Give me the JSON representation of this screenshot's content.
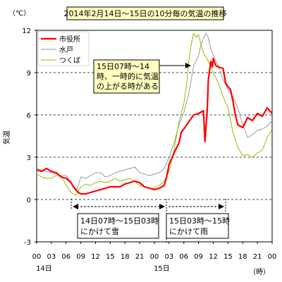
{
  "chart_data": {
    "type": "line",
    "title": "2014年2月14日～15日の10分毎の気温の推移",
    "ylabel": "気温",
    "yunit": "（℃）",
    "xunit": "（時）",
    "ylim": [
      -3,
      12
    ],
    "yticks": [
      "-3",
      "0",
      "3",
      "6",
      "9",
      "12"
    ],
    "ytick_values": [
      -3,
      0,
      3,
      6,
      9,
      12
    ],
    "xlim": [
      0,
      48
    ],
    "xticks": [
      "00",
      "03",
      "06",
      "09",
      "12",
      "15",
      "18",
      "21",
      "00",
      "03",
      "06",
      "09",
      "12",
      "15",
      "18",
      "21",
      "00"
    ],
    "xtick_values": [
      0,
      3,
      6,
      9,
      12,
      15,
      18,
      21,
      24,
      27,
      30,
      33,
      36,
      39,
      42,
      45,
      48
    ],
    "day_labels": [
      {
        "text": "14日",
        "x": 1.5
      },
      {
        "text": "15日",
        "x": 25.5
      }
    ],
    "grid": true,
    "legend_position": "top-left",
    "series": [
      {
        "name": "市役所",
        "color": "#ff0000",
        "points": [
          [
            0,
            2.1
          ],
          [
            1,
            2.0
          ],
          [
            2,
            2.2
          ],
          [
            3,
            2.0
          ],
          [
            4,
            1.9
          ],
          [
            5,
            1.6
          ],
          [
            6,
            1.5
          ],
          [
            7,
            1.2
          ],
          [
            7.5,
            0.9
          ],
          [
            8,
            0.7
          ],
          [
            8.5,
            0.5
          ],
          [
            9,
            0.4
          ],
          [
            10,
            0.4
          ],
          [
            11,
            0.5
          ],
          [
            12,
            0.6
          ],
          [
            13,
            0.7
          ],
          [
            14,
            0.8
          ],
          [
            15,
            0.9
          ],
          [
            16,
            0.9
          ],
          [
            17,
            0.9
          ],
          [
            18,
            1.1
          ],
          [
            19,
            1.2
          ],
          [
            20,
            1.3
          ],
          [
            21,
            1.2
          ],
          [
            22,
            0.9
          ],
          [
            23,
            0.8
          ],
          [
            24,
            0.7
          ],
          [
            25,
            0.8
          ],
          [
            26,
            1.0
          ],
          [
            26.5,
            1.6
          ],
          [
            27,
            2.5
          ],
          [
            28,
            3.3
          ],
          [
            29,
            4.0
          ],
          [
            29.5,
            4.8
          ],
          [
            30,
            5.0
          ],
          [
            31,
            5.5
          ],
          [
            32,
            6.0
          ],
          [
            33,
            6.1
          ],
          [
            34,
            6.3
          ],
          [
            34.3,
            4.1
          ],
          [
            34.8,
            6.5
          ],
          [
            35,
            8.5
          ],
          [
            35.5,
            9.8
          ],
          [
            35.8,
            9.4
          ],
          [
            36,
            10.0
          ],
          [
            36.5,
            9.5
          ],
          [
            37,
            9.4
          ],
          [
            38,
            9.3
          ],
          [
            38.5,
            8.3
          ],
          [
            39,
            8.0
          ],
          [
            39.5,
            7.8
          ],
          [
            40,
            7.0
          ],
          [
            40.5,
            6.0
          ],
          [
            41,
            5.3
          ],
          [
            42,
            5.1
          ],
          [
            43,
            5.8
          ],
          [
            44,
            5.6
          ],
          [
            45,
            6.1
          ],
          [
            46,
            5.9
          ],
          [
            47,
            6.5
          ],
          [
            48,
            6.1
          ]
        ]
      },
      {
        "name": "水戸",
        "color": "#999999",
        "points": [
          [
            0,
            2.2
          ],
          [
            1,
            2.1
          ],
          [
            2,
            2.0
          ],
          [
            3,
            1.9
          ],
          [
            4,
            1.8
          ],
          [
            5,
            1.7
          ],
          [
            6,
            1.7
          ],
          [
            7,
            1.2
          ],
          [
            8,
            0.6
          ],
          [
            8.5,
            1.0
          ],
          [
            9,
            1.6
          ],
          [
            10,
            1.5
          ],
          [
            11,
            1.7
          ],
          [
            12,
            1.9
          ],
          [
            13,
            1.9
          ],
          [
            14,
            1.6
          ],
          [
            15,
            1.7
          ],
          [
            16,
            1.9
          ],
          [
            17,
            2.0
          ],
          [
            18,
            2.1
          ],
          [
            19,
            2.2
          ],
          [
            20,
            2.3
          ],
          [
            21,
            1.9
          ],
          [
            22,
            1.8
          ],
          [
            23,
            1.7
          ],
          [
            24,
            1.8
          ],
          [
            25,
            1.9
          ],
          [
            26,
            2.2
          ],
          [
            27,
            3.0
          ],
          [
            28,
            4.0
          ],
          [
            29,
            5.3
          ],
          [
            30,
            6.2
          ],
          [
            31,
            7.5
          ],
          [
            32,
            9.5
          ],
          [
            33,
            10.2
          ],
          [
            33.5,
            11.0
          ],
          [
            34,
            11.4
          ],
          [
            34.5,
            11.8
          ],
          [
            35,
            11.5
          ],
          [
            35.5,
            10.7
          ],
          [
            36,
            10.2
          ],
          [
            37,
            9.5
          ],
          [
            38,
            8.5
          ],
          [
            39,
            7.8
          ],
          [
            40,
            7.3
          ],
          [
            41,
            6.5
          ],
          [
            42,
            5.3
          ],
          [
            43,
            4.4
          ],
          [
            44,
            4.6
          ],
          [
            45,
            4.9
          ],
          [
            46,
            5.0
          ],
          [
            47,
            5.2
          ],
          [
            48,
            5.6
          ]
        ]
      },
      {
        "name": "つくば",
        "color": "#99bb00",
        "points": [
          [
            0,
            1.8
          ],
          [
            1,
            1.6
          ],
          [
            2,
            1.5
          ],
          [
            3,
            1.5
          ],
          [
            4,
            1.7
          ],
          [
            5,
            1.7
          ],
          [
            6,
            1.0
          ],
          [
            7,
            0.5
          ],
          [
            8,
            0.3
          ],
          [
            9,
            0.9
          ],
          [
            10,
            1.1
          ],
          [
            11,
            1.0
          ],
          [
            12,
            1.2
          ],
          [
            13,
            1.3
          ],
          [
            14,
            1.2
          ],
          [
            15,
            1.3
          ],
          [
            16,
            1.5
          ],
          [
            17,
            1.3
          ],
          [
            18,
            1.4
          ],
          [
            19,
            1.5
          ],
          [
            20,
            1.3
          ],
          [
            21,
            1.0
          ],
          [
            22,
            0.9
          ],
          [
            23,
            0.8
          ],
          [
            24,
            0.8
          ],
          [
            25,
            1.0
          ],
          [
            26,
            1.3
          ],
          [
            27,
            2.0
          ],
          [
            28,
            3.5
          ],
          [
            29,
            5.5
          ],
          [
            30,
            6.8
          ],
          [
            30.5,
            8.0
          ],
          [
            31,
            9.8
          ],
          [
            31.5,
            11.0
          ],
          [
            32,
            11.8
          ],
          [
            32.5,
            11.5
          ],
          [
            33,
            11.7
          ],
          [
            33.5,
            11.0
          ],
          [
            34,
            10.4
          ],
          [
            35,
            9.8
          ],
          [
            36,
            9.0
          ],
          [
            37,
            8.3
          ],
          [
            38,
            7.3
          ],
          [
            39,
            6.5
          ],
          [
            40,
            4.8
          ],
          [
            41,
            3.7
          ],
          [
            42,
            3.1
          ],
          [
            43,
            3.2
          ],
          [
            44,
            3.0
          ],
          [
            45,
            3.3
          ],
          [
            46,
            3.5
          ],
          [
            47,
            4.4
          ],
          [
            48,
            5.0
          ]
        ]
      }
    ],
    "annotations": [
      {
        "lines": [
          "15日07時～14",
          "時、一時的に気温",
          "の上がる時がある"
        ],
        "arrow_to": [
          31.5,
          9.5
        ]
      },
      {
        "lines": [
          "14日07時～15日03時",
          "にかけて雪"
        ],
        "range": [
          7,
          27
        ]
      },
      {
        "lines": [
          "15日03時～15時",
          "にかけて雨"
        ],
        "range": [
          27,
          39
        ]
      }
    ]
  }
}
